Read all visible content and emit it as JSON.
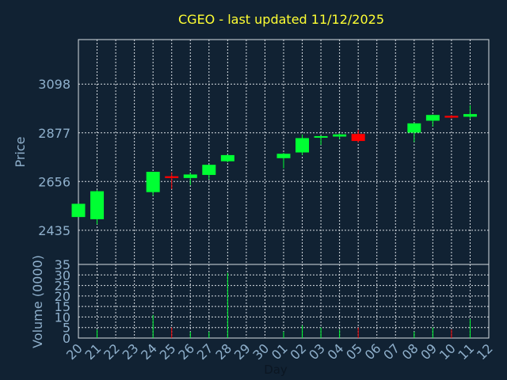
{
  "chart_data": {
    "type": "candlestick",
    "title": "CGEO - last updated 11/12/2025",
    "ylabel": "Price",
    "volume_ylabel": "Volume (0000)",
    "xlabel": "Day",
    "price_ticks": [
      2435,
      2656,
      2877,
      3098
    ],
    "volume_ticks": [
      0,
      5,
      10,
      15,
      20,
      25,
      30,
      35
    ],
    "price_ylim": [
      2280,
      3300
    ],
    "volume_ylim": [
      0,
      35
    ],
    "x_ticks": [
      "20",
      "21",
      "22",
      "23",
      "24",
      "25",
      "26",
      "27",
      "28",
      "29",
      "30",
      "01",
      "02",
      "03",
      "04",
      "05",
      "06",
      "07",
      "08",
      "09",
      "10",
      "11",
      "12"
    ],
    "grid": true,
    "colors": {
      "up": "#00ff33",
      "down": "#ff0000",
      "background": "#112233",
      "text": "#8fb0cc",
      "title": "#ffff33",
      "grid": "#d8dde3"
    },
    "candles": [
      {
        "day": "20",
        "open": 2495,
        "close": 2555,
        "high": 2555,
        "low": 2495,
        "volume": 0
      },
      {
        "day": "21",
        "open": 2485,
        "close": 2612,
        "high": 2618,
        "low": 2462,
        "volume": 4
      },
      {
        "day": "24",
        "open": 2608,
        "close": 2700,
        "high": 2700,
        "low": 2592,
        "volume": 11
      },
      {
        "day": "25",
        "open": 2680,
        "close": 2672,
        "high": 2698,
        "low": 2622,
        "volume": 5
      },
      {
        "day": "26",
        "open": 2672,
        "close": 2688,
        "high": 2695,
        "low": 2640,
        "volume": 3
      },
      {
        "day": "27",
        "open": 2686,
        "close": 2732,
        "high": 2732,
        "low": 2665,
        "volume": 3
      },
      {
        "day": "28",
        "open": 2748,
        "close": 2776,
        "high": 2778,
        "low": 2744,
        "volume": 31
      },
      {
        "day": "01",
        "open": 2762,
        "close": 2782,
        "high": 2786,
        "low": 2716,
        "volume": 3
      },
      {
        "day": "02",
        "open": 2788,
        "close": 2853,
        "high": 2870,
        "low": 2776,
        "volume": 6
      },
      {
        "day": "03",
        "open": 2855,
        "close": 2862,
        "high": 2864,
        "low": 2822,
        "volume": 5
      },
      {
        "day": "04",
        "open": 2860,
        "close": 2870,
        "high": 2874,
        "low": 2848,
        "volume": 4
      },
      {
        "day": "05",
        "open": 2872,
        "close": 2840,
        "high": 2890,
        "low": 2833,
        "volume": 5
      },
      {
        "day": "08",
        "open": 2878,
        "close": 2920,
        "high": 2922,
        "low": 2835,
        "volume": 3
      },
      {
        "day": "09",
        "open": 2932,
        "close": 2958,
        "high": 2960,
        "low": 2905,
        "volume": 5
      },
      {
        "day": "10",
        "open": 2954,
        "close": 2946,
        "high": 2958,
        "low": 2942,
        "volume": 4
      },
      {
        "day": "11",
        "open": 2950,
        "close": 2962,
        "high": 3002,
        "low": 2940,
        "volume": 9
      }
    ]
  }
}
